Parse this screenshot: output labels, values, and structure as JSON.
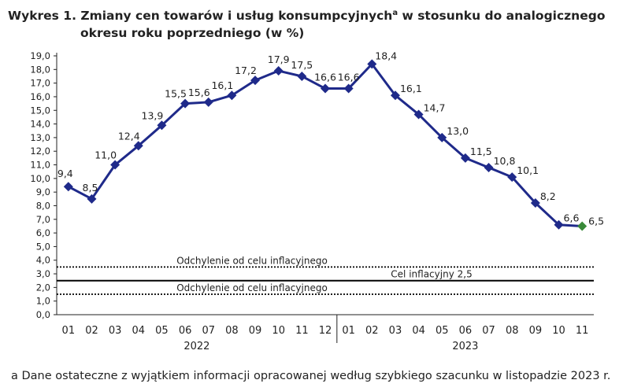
{
  "title": {
    "line1": "Wykres 1. Zmiany cen towarów i usług konsumpcyjnych",
    "sup": "a",
    "line1_end": " w stosunku do analogicznego",
    "line2": "okresu roku poprzedniego (w %)"
  },
  "footnote": "a Dane ostateczne z wyjątkiem informacji opracowanej według szybkiego szacunku w listopadzie 2023 r.",
  "colors": {
    "line": "#1f2a8a",
    "highlight": "#3a8a3a",
    "reference": "#000000"
  },
  "chart_data": {
    "type": "line",
    "categories": [
      "01",
      "02",
      "03",
      "04",
      "05",
      "06",
      "07",
      "08",
      "09",
      "10",
      "11",
      "12",
      "01",
      "02",
      "03",
      "04",
      "05",
      "06",
      "07",
      "08",
      "09",
      "10",
      "11"
    ],
    "year_groups": [
      {
        "label": "2022",
        "start": 0,
        "end": 11
      },
      {
        "label": "2023",
        "start": 12,
        "end": 22
      }
    ],
    "series": [
      {
        "values": [
          9.4,
          8.5,
          11.0,
          12.4,
          13.9,
          15.5,
          15.6,
          16.1,
          17.2,
          17.9,
          17.5,
          16.6,
          16.6,
          18.4,
          16.1,
          14.7,
          13.0,
          11.5,
          10.8,
          10.1,
          8.2,
          6.6,
          6.5
        ],
        "labels": [
          "9,4",
          "8,5",
          "11,0",
          "12,4",
          "13,9",
          "15,5",
          "15,6",
          "16,1",
          "17,2",
          "17,9",
          "17,5",
          "16,6",
          "16,6",
          "18,4",
          "16,1",
          "14,7",
          "13,0",
          "11,5",
          "10,8",
          "10,1",
          "8,2",
          "6,6",
          "6,5"
        ],
        "highlight_last": true
      }
    ],
    "reference_lines": [
      {
        "value": 3.5,
        "style": "dotted",
        "label": "Odchylenie od celu inflacyjnego"
      },
      {
        "value": 2.5,
        "style": "solid",
        "label": "Cel inflacyjny 2,5"
      },
      {
        "value": 1.5,
        "style": "dotted",
        "label": "Odchylenie od celu inflacyjnego"
      }
    ],
    "ylim": [
      0,
      19
    ],
    "ytick_step": 1,
    "ytick_labels": [
      "0,0",
      "1,0",
      "2,0",
      "3,0",
      "4,0",
      "5,0",
      "6,0",
      "7,0",
      "8,0",
      "9,0",
      "10,0",
      "11,0",
      "12,0",
      "13,0",
      "14,0",
      "15,0",
      "16,0",
      "17,0",
      "18,0",
      "19,0"
    ],
    "grid": false,
    "legend": "none"
  }
}
